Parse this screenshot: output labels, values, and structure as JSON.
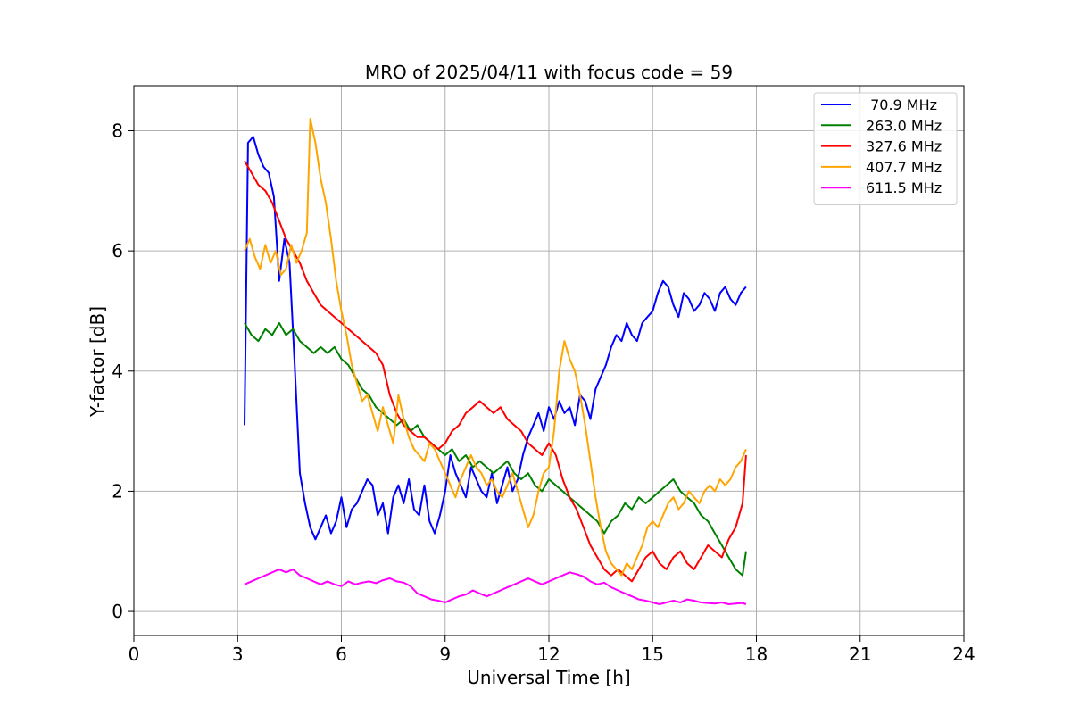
{
  "chart_data": {
    "type": "line",
    "title": "MRO of 2025/04/11 with focus code = 59",
    "xlabel": "Universal Time [h]",
    "ylabel": "Y-factor [dB]",
    "xlim": [
      0,
      24
    ],
    "ylim": [
      -0.4,
      8.75
    ],
    "xticks": [
      0,
      3,
      6,
      9,
      12,
      15,
      18,
      21,
      24
    ],
    "yticks": [
      0,
      2,
      4,
      6,
      8
    ],
    "grid": true,
    "legend_position": "top-right",
    "series": [
      {
        "name": " 70.9 MHz",
        "color": "#0000ff",
        "x": [
          3.2,
          3.3,
          3.45,
          3.6,
          3.75,
          3.9,
          4.05,
          4.2,
          4.35,
          4.5,
          4.65,
          4.8,
          4.95,
          5.1,
          5.25,
          5.4,
          5.55,
          5.7,
          5.85,
          6.0,
          6.15,
          6.3,
          6.45,
          6.6,
          6.75,
          6.9,
          7.05,
          7.2,
          7.35,
          7.5,
          7.65,
          7.8,
          7.95,
          8.1,
          8.25,
          8.4,
          8.55,
          8.7,
          8.85,
          9.0,
          9.15,
          9.3,
          9.45,
          9.6,
          9.75,
          9.9,
          10.05,
          10.2,
          10.35,
          10.5,
          10.65,
          10.8,
          10.95,
          11.1,
          11.25,
          11.4,
          11.55,
          11.7,
          11.85,
          12.0,
          12.15,
          12.3,
          12.45,
          12.6,
          12.75,
          12.9,
          13.05,
          13.2,
          13.35,
          13.5,
          13.65,
          13.8,
          13.95,
          14.1,
          14.25,
          14.4,
          14.55,
          14.7,
          14.85,
          15.0,
          15.15,
          15.3,
          15.45,
          15.6,
          15.75,
          15.9,
          16.05,
          16.2,
          16.35,
          16.5,
          16.65,
          16.8,
          16.95,
          17.1,
          17.25,
          17.4,
          17.55,
          17.7
        ],
        "y": [
          3.1,
          7.8,
          7.9,
          7.6,
          7.4,
          7.3,
          6.9,
          5.5,
          6.2,
          5.8,
          4.1,
          2.3,
          1.8,
          1.4,
          1.2,
          1.4,
          1.6,
          1.3,
          1.5,
          1.9,
          1.4,
          1.7,
          1.8,
          2.0,
          2.2,
          2.1,
          1.6,
          1.8,
          1.3,
          1.9,
          2.1,
          1.8,
          2.2,
          1.7,
          1.6,
          2.1,
          1.5,
          1.3,
          1.6,
          2.0,
          2.6,
          2.3,
          2.1,
          1.9,
          2.4,
          2.2,
          2.0,
          1.9,
          2.3,
          1.8,
          2.1,
          2.4,
          2.0,
          2.2,
          2.6,
          2.9,
          3.1,
          3.3,
          3.0,
          3.4,
          3.2,
          3.5,
          3.3,
          3.4,
          3.1,
          3.6,
          3.5,
          3.2,
          3.7,
          3.9,
          4.1,
          4.4,
          4.6,
          4.5,
          4.8,
          4.6,
          4.5,
          4.8,
          4.9,
          5.0,
          5.3,
          5.5,
          5.4,
          5.1,
          4.9,
          5.3,
          5.2,
          5.0,
          5.1,
          5.3,
          5.2,
          5.0,
          5.3,
          5.4,
          5.2,
          5.1,
          5.3,
          5.4
        ]
      },
      {
        "name": "263.0 MHz",
        "color": "#008000",
        "x": [
          3.2,
          3.4,
          3.6,
          3.8,
          4.0,
          4.2,
          4.4,
          4.6,
          4.8,
          5.0,
          5.2,
          5.4,
          5.6,
          5.8,
          6.0,
          6.2,
          6.4,
          6.6,
          6.8,
          7.0,
          7.2,
          7.4,
          7.6,
          7.8,
          8.0,
          8.2,
          8.4,
          8.6,
          8.8,
          9.0,
          9.2,
          9.4,
          9.6,
          9.8,
          10.0,
          10.2,
          10.4,
          10.6,
          10.8,
          11.0,
          11.2,
          11.4,
          11.6,
          11.8,
          12.0,
          12.2,
          12.4,
          12.6,
          12.8,
          13.0,
          13.2,
          13.4,
          13.6,
          13.8,
          14.0,
          14.2,
          14.4,
          14.6,
          14.8,
          15.0,
          15.2,
          15.4,
          15.6,
          15.8,
          16.0,
          16.2,
          16.4,
          16.6,
          16.8,
          17.0,
          17.2,
          17.4,
          17.6,
          17.7
        ],
        "y": [
          4.8,
          4.6,
          4.5,
          4.7,
          4.6,
          4.8,
          4.6,
          4.7,
          4.5,
          4.4,
          4.3,
          4.4,
          4.3,
          4.4,
          4.2,
          4.1,
          3.9,
          3.7,
          3.6,
          3.4,
          3.3,
          3.2,
          3.1,
          3.2,
          3.0,
          3.1,
          2.9,
          2.8,
          2.7,
          2.6,
          2.7,
          2.5,
          2.6,
          2.4,
          2.5,
          2.4,
          2.3,
          2.4,
          2.5,
          2.3,
          2.2,
          2.3,
          2.1,
          2.0,
          2.2,
          2.1,
          2.0,
          1.9,
          1.8,
          1.7,
          1.6,
          1.5,
          1.3,
          1.5,
          1.6,
          1.8,
          1.7,
          1.9,
          1.8,
          1.9,
          2.0,
          2.1,
          2.2,
          2.0,
          1.9,
          1.8,
          1.6,
          1.5,
          1.3,
          1.1,
          0.9,
          0.7,
          0.6,
          1.0
        ]
      },
      {
        "name": "327.6 MHz",
        "color": "#ff0000",
        "x": [
          3.2,
          3.4,
          3.6,
          3.8,
          4.0,
          4.2,
          4.4,
          4.6,
          4.8,
          5.0,
          5.2,
          5.4,
          5.6,
          5.8,
          6.0,
          6.2,
          6.4,
          6.6,
          6.8,
          7.0,
          7.2,
          7.4,
          7.6,
          7.8,
          8.0,
          8.2,
          8.4,
          8.6,
          8.8,
          9.0,
          9.2,
          9.4,
          9.6,
          9.8,
          10.0,
          10.2,
          10.4,
          10.6,
          10.8,
          11.0,
          11.2,
          11.4,
          11.6,
          11.8,
          12.0,
          12.2,
          12.4,
          12.6,
          12.8,
          13.0,
          13.2,
          13.4,
          13.6,
          13.8,
          14.0,
          14.2,
          14.4,
          14.6,
          14.8,
          15.0,
          15.2,
          15.4,
          15.6,
          15.8,
          16.0,
          16.2,
          16.4,
          16.6,
          16.8,
          17.0,
          17.2,
          17.4,
          17.6,
          17.7
        ],
        "y": [
          7.5,
          7.3,
          7.1,
          7.0,
          6.8,
          6.5,
          6.2,
          6.0,
          5.8,
          5.5,
          5.3,
          5.1,
          5.0,
          4.9,
          4.8,
          4.7,
          4.6,
          4.5,
          4.4,
          4.3,
          4.1,
          3.6,
          3.3,
          3.1,
          3.0,
          2.9,
          2.9,
          2.8,
          2.7,
          2.8,
          3.0,
          3.1,
          3.3,
          3.4,
          3.5,
          3.4,
          3.3,
          3.4,
          3.2,
          3.1,
          3.0,
          2.8,
          2.7,
          2.6,
          2.8,
          2.6,
          2.2,
          1.9,
          1.7,
          1.4,
          1.1,
          0.9,
          0.7,
          0.6,
          0.7,
          0.6,
          0.5,
          0.7,
          0.9,
          1.0,
          0.8,
          0.7,
          0.9,
          1.0,
          0.8,
          0.7,
          0.9,
          1.1,
          1.0,
          0.9,
          1.2,
          1.4,
          1.8,
          2.6
        ]
      },
      {
        "name": "407.7 MHz",
        "color": "#ffa500",
        "x": [
          3.2,
          3.35,
          3.5,
          3.65,
          3.8,
          3.95,
          4.1,
          4.25,
          4.4,
          4.55,
          4.7,
          4.85,
          5.0,
          5.1,
          5.25,
          5.4,
          5.55,
          5.7,
          5.85,
          6.0,
          6.15,
          6.3,
          6.45,
          6.6,
          6.75,
          6.9,
          7.05,
          7.2,
          7.35,
          7.5,
          7.65,
          7.8,
          7.95,
          8.1,
          8.25,
          8.4,
          8.55,
          8.7,
          8.85,
          9.0,
          9.15,
          9.3,
          9.45,
          9.6,
          9.75,
          9.9,
          10.05,
          10.2,
          10.35,
          10.5,
          10.65,
          10.8,
          10.95,
          11.1,
          11.25,
          11.4,
          11.55,
          11.7,
          11.85,
          12.0,
          12.15,
          12.3,
          12.45,
          12.6,
          12.75,
          12.9,
          13.05,
          13.2,
          13.35,
          13.5,
          13.65,
          13.8,
          13.95,
          14.1,
          14.25,
          14.4,
          14.55,
          14.7,
          14.85,
          15.0,
          15.15,
          15.3,
          15.45,
          15.6,
          15.75,
          15.9,
          16.05,
          16.2,
          16.35,
          16.5,
          16.65,
          16.8,
          16.95,
          17.1,
          17.25,
          17.4,
          17.55,
          17.7
        ],
        "y": [
          6.0,
          6.2,
          5.9,
          5.7,
          6.1,
          5.8,
          6.0,
          5.6,
          5.7,
          6.1,
          5.8,
          6.0,
          6.3,
          8.2,
          7.8,
          7.2,
          6.8,
          6.2,
          5.5,
          5.0,
          4.6,
          4.1,
          3.8,
          3.5,
          3.6,
          3.3,
          3.0,
          3.4,
          3.1,
          2.8,
          3.6,
          3.2,
          2.9,
          2.7,
          2.6,
          2.5,
          2.8,
          2.7,
          2.5,
          2.3,
          2.1,
          1.9,
          2.2,
          2.4,
          2.6,
          2.4,
          2.3,
          2.1,
          2.2,
          2.0,
          1.9,
          2.1,
          2.3,
          2.0,
          1.7,
          1.4,
          1.6,
          2.0,
          2.3,
          2.4,
          3.0,
          4.0,
          4.5,
          4.2,
          4.0,
          3.6,
          3.1,
          2.5,
          1.9,
          1.4,
          1.0,
          0.8,
          0.7,
          0.6,
          0.8,
          0.7,
          0.9,
          1.1,
          1.4,
          1.5,
          1.4,
          1.6,
          1.8,
          1.9,
          1.7,
          1.8,
          2.0,
          1.9,
          1.8,
          2.0,
          2.1,
          2.0,
          2.2,
          2.1,
          2.2,
          2.4,
          2.5,
          2.7
        ]
      },
      {
        "name": "611.5 MHz",
        "color": "#ff00ff",
        "x": [
          3.2,
          3.4,
          3.6,
          3.8,
          4.0,
          4.2,
          4.4,
          4.6,
          4.8,
          5.0,
          5.2,
          5.4,
          5.6,
          5.8,
          6.0,
          6.2,
          6.4,
          6.6,
          6.8,
          7.0,
          7.2,
          7.4,
          7.6,
          7.8,
          8.0,
          8.2,
          8.4,
          8.6,
          8.8,
          9.0,
          9.2,
          9.4,
          9.6,
          9.8,
          10.0,
          10.2,
          10.4,
          10.6,
          10.8,
          11.0,
          11.2,
          11.4,
          11.6,
          11.8,
          12.0,
          12.2,
          12.4,
          12.6,
          12.8,
          13.0,
          13.2,
          13.4,
          13.6,
          13.8,
          14.0,
          14.2,
          14.4,
          14.6,
          14.8,
          15.0,
          15.2,
          15.4,
          15.6,
          15.8,
          16.0,
          16.2,
          16.4,
          16.6,
          16.8,
          17.0,
          17.2,
          17.4,
          17.6,
          17.7
        ],
        "y": [
          0.45,
          0.5,
          0.55,
          0.6,
          0.65,
          0.7,
          0.65,
          0.7,
          0.6,
          0.55,
          0.5,
          0.45,
          0.5,
          0.45,
          0.42,
          0.5,
          0.45,
          0.48,
          0.5,
          0.47,
          0.52,
          0.55,
          0.5,
          0.48,
          0.42,
          0.3,
          0.25,
          0.2,
          0.18,
          0.15,
          0.2,
          0.25,
          0.28,
          0.35,
          0.3,
          0.25,
          0.3,
          0.35,
          0.4,
          0.45,
          0.5,
          0.55,
          0.5,
          0.45,
          0.5,
          0.55,
          0.6,
          0.65,
          0.62,
          0.58,
          0.5,
          0.45,
          0.48,
          0.4,
          0.35,
          0.3,
          0.25,
          0.2,
          0.18,
          0.15,
          0.12,
          0.15,
          0.18,
          0.15,
          0.2,
          0.18,
          0.15,
          0.14,
          0.13,
          0.15,
          0.12,
          0.13,
          0.14,
          0.12
        ]
      }
    ]
  }
}
